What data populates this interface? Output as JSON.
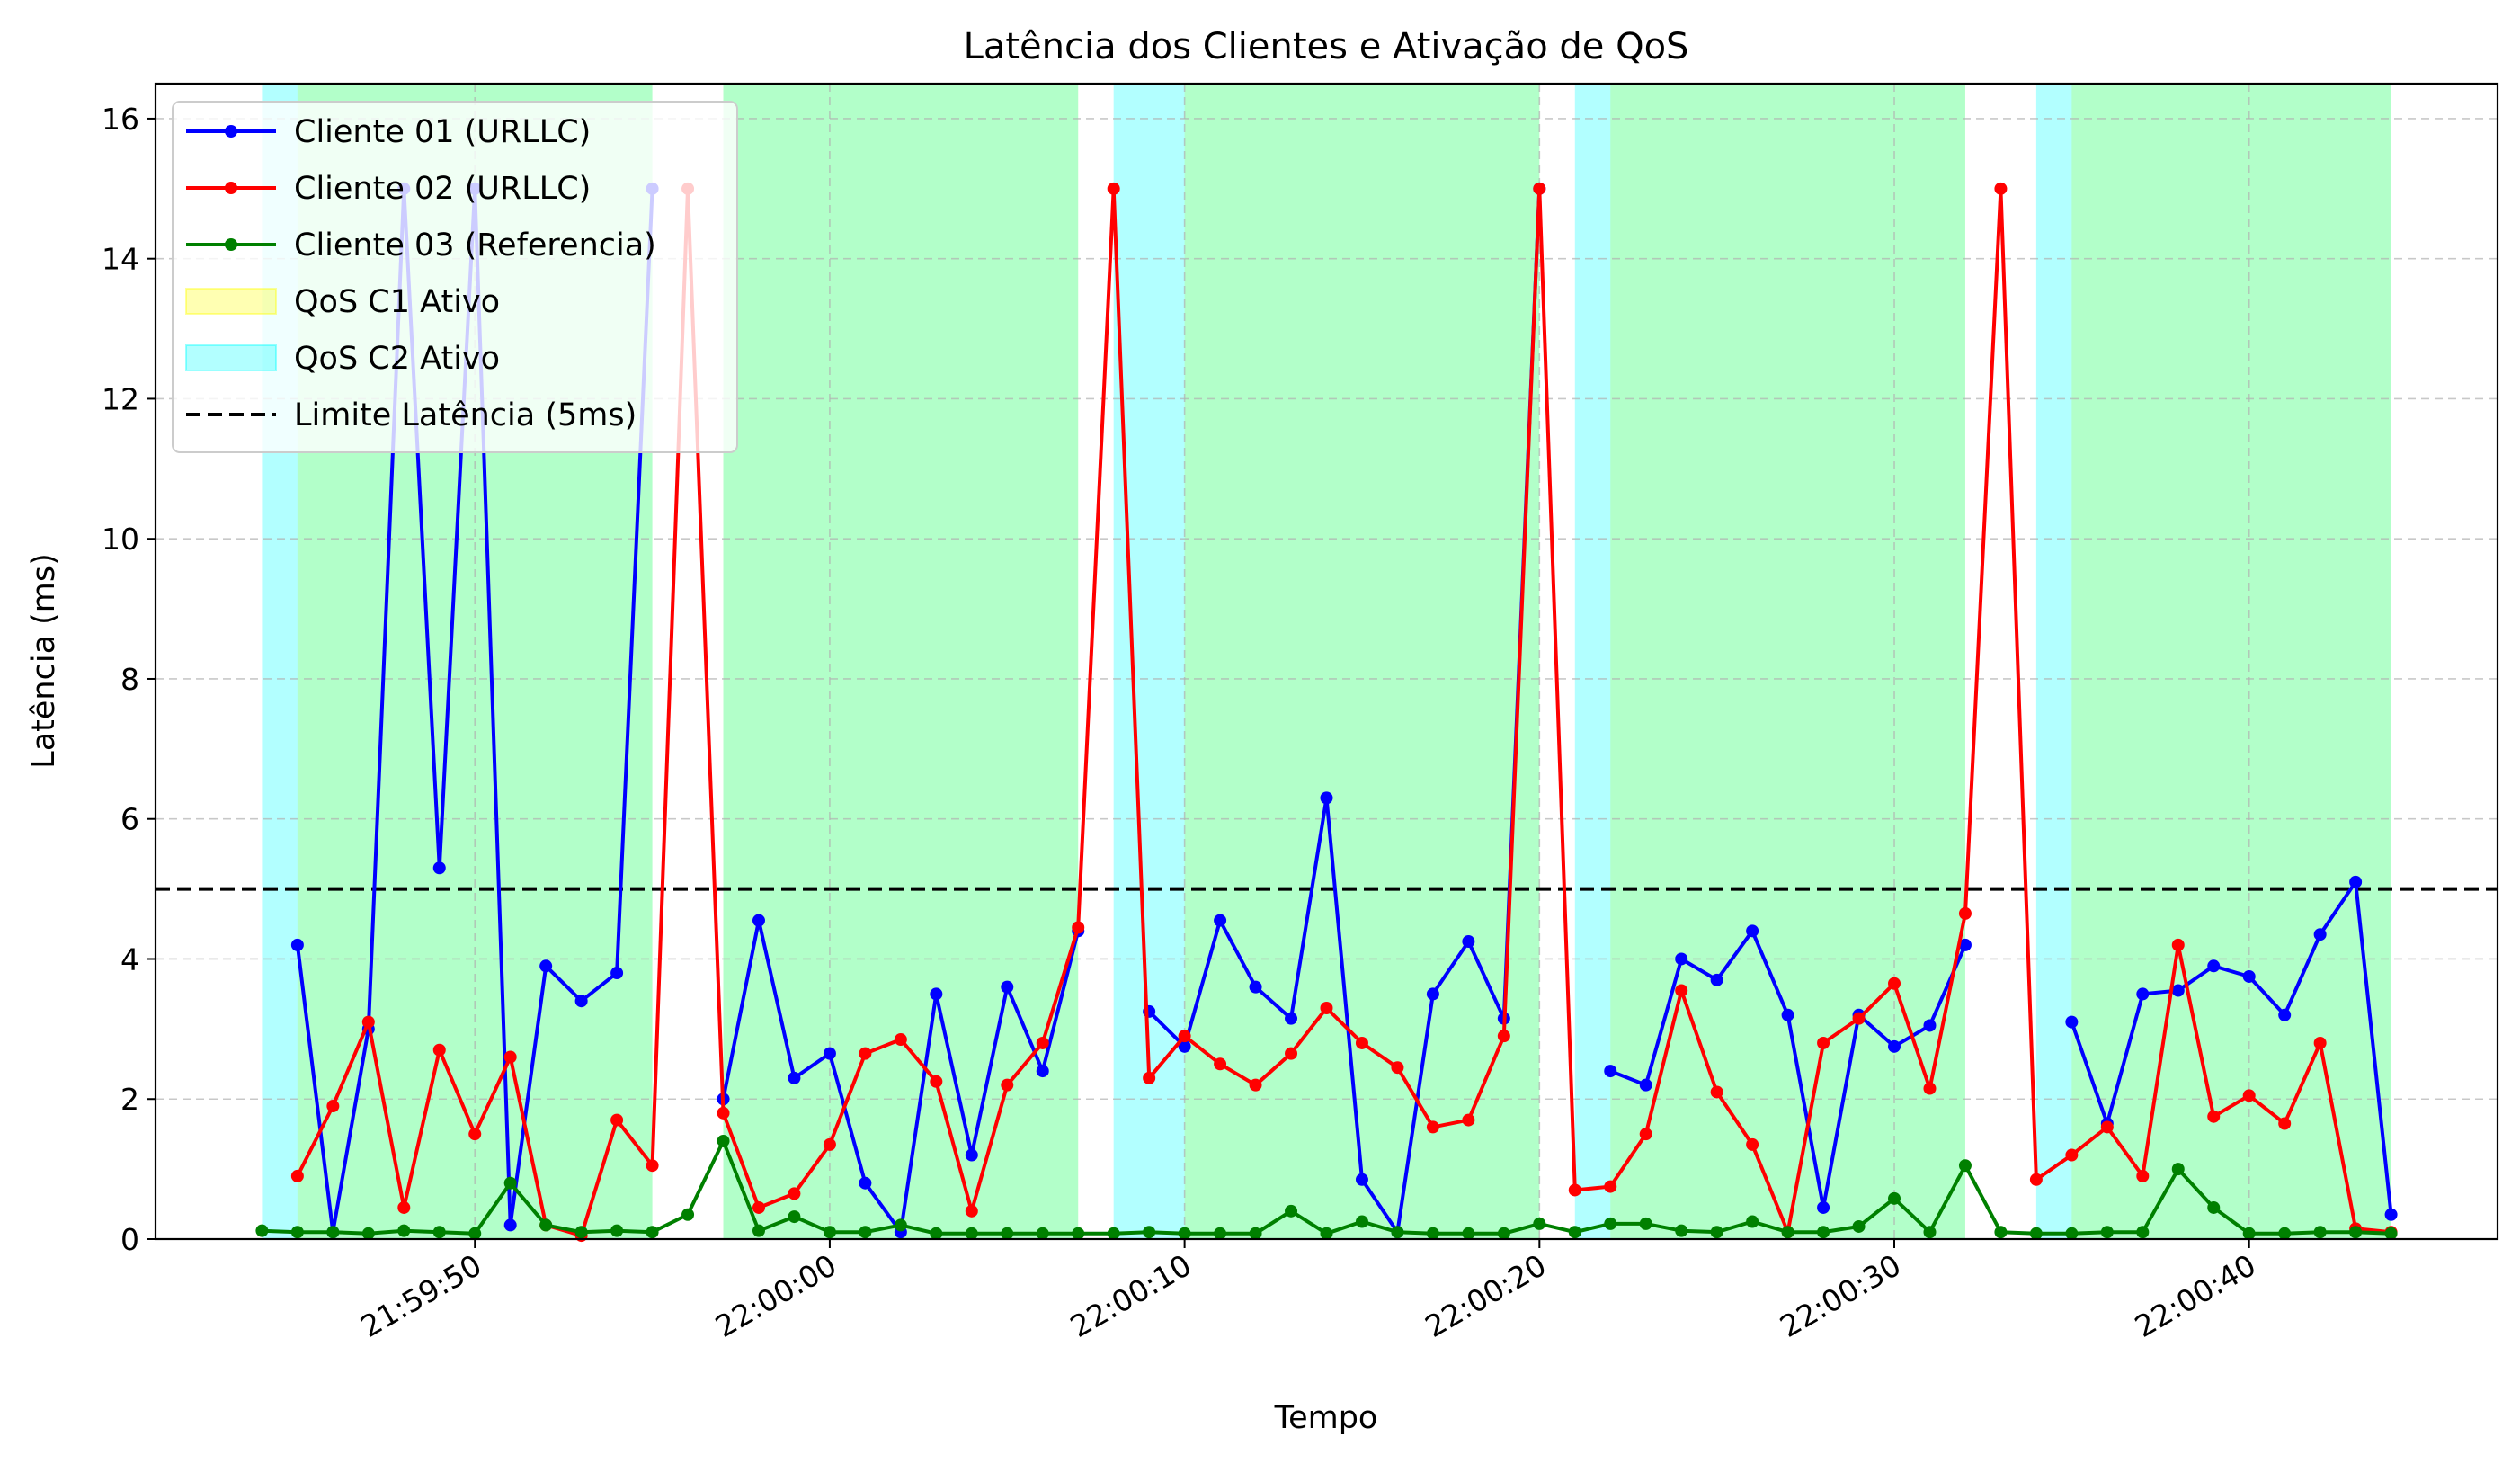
{
  "chart_data": {
    "type": "line",
    "title": "Latência dos Clientes e Ativação de QoS",
    "xlabel": "Tempo",
    "ylabel": "Latência (ms)",
    "x_start": "21:59:44",
    "x_step_seconds": 1,
    "xlim": [
      "21:59:41",
      "22:00:47"
    ],
    "ylim": [
      0,
      16.5
    ],
    "x_ticks": [
      "21:59:50",
      "22:00:00",
      "22:00:10",
      "22:00:20",
      "22:00:30",
      "22:00:40"
    ],
    "y_ticks": [
      0,
      2,
      4,
      6,
      8,
      10,
      12,
      14,
      16
    ],
    "grid": true,
    "legend_position": "top-left",
    "series": [
      {
        "name": "Cliente 01 (URLLC)",
        "color": "#0000ff",
        "values": [
          null,
          4.2,
          0.1,
          3.0,
          15.0,
          5.3,
          15.0,
          0.2,
          3.9,
          3.4,
          3.8,
          15.0,
          null,
          2.0,
          4.55,
          2.3,
          2.65,
          0.8,
          0.1,
          3.5,
          1.2,
          3.6,
          2.4,
          4.4,
          null,
          3.25,
          2.75,
          4.55,
          3.6,
          3.15,
          6.3,
          0.85,
          0.1,
          3.5,
          4.25,
          3.15,
          15.0,
          null,
          2.4,
          2.2,
          4.0,
          3.7,
          4.4,
          3.2,
          0.45,
          3.2,
          2.75,
          3.05,
          4.2,
          null,
          null,
          3.1,
          1.65,
          3.5,
          3.55,
          3.9,
          3.75,
          3.2,
          4.35,
          5.1,
          0.35
        ]
      },
      {
        "name": "Cliente 02 (URLLC)",
        "color": "#ff0000",
        "values": [
          null,
          0.9,
          1.9,
          3.1,
          0.45,
          2.7,
          1.5,
          2.6,
          0.2,
          0.05,
          1.7,
          1.05,
          15.0,
          1.8,
          0.45,
          0.65,
          1.35,
          2.65,
          2.85,
          2.25,
          0.4,
          2.2,
          2.8,
          4.45,
          15.0,
          2.3,
          2.9,
          2.5,
          2.2,
          2.65,
          3.3,
          2.8,
          2.45,
          1.6,
          1.7,
          2.9,
          15.0,
          0.7,
          0.75,
          1.5,
          3.55,
          2.1,
          1.35,
          0.1,
          2.8,
          3.15,
          3.65,
          2.15,
          4.65,
          15.0,
          0.85,
          1.2,
          1.6,
          0.9,
          4.2,
          1.75,
          2.05,
          1.65,
          2.8,
          0.15,
          0.1
        ]
      },
      {
        "name": "Cliente 03 (Referencia)",
        "color": "#008000",
        "values": [
          0.12,
          0.1,
          0.1,
          0.08,
          0.12,
          0.1,
          0.08,
          0.8,
          0.2,
          0.1,
          0.12,
          0.1,
          0.35,
          1.4,
          0.12,
          0.32,
          0.1,
          0.1,
          0.2,
          0.08,
          0.08,
          0.08,
          0.08,
          0.08,
          0.08,
          0.1,
          0.08,
          0.08,
          0.08,
          0.4,
          0.08,
          0.25,
          0.1,
          0.08,
          0.08,
          0.08,
          0.22,
          0.1,
          0.22,
          0.22,
          0.12,
          0.1,
          0.25,
          0.1,
          0.1,
          0.18,
          0.58,
          0.1,
          1.05,
          0.1,
          0.08,
          0.08,
          0.1,
          0.1,
          1.0,
          0.45,
          0.08,
          0.08,
          0.1,
          0.1,
          0.08
        ]
      }
    ],
    "qos_regions": [
      {
        "name": "QoS C1 Ativo",
        "color": "#ffff00",
        "intervals": [
          [
            "21:59:45",
            "21:59:55"
          ],
          [
            "21:59:57",
            "22:00:07"
          ],
          [
            "22:00:10",
            "22:00:20"
          ],
          [
            "22:00:22",
            "22:00:32"
          ],
          [
            "22:00:35",
            "22:00:44"
          ]
        ]
      },
      {
        "name": "QoS C2 Ativo",
        "color": "#00ffff",
        "intervals": [
          [
            "21:59:44",
            "21:59:55"
          ],
          [
            "21:59:57",
            "22:00:07"
          ],
          [
            "22:00:08",
            "22:00:20"
          ],
          [
            "22:00:21",
            "22:00:32"
          ],
          [
            "22:00:34",
            "22:00:44"
          ]
        ]
      }
    ],
    "threshold": {
      "name": "Limite Latência (5ms)",
      "value": 5,
      "color": "#000000"
    }
  }
}
